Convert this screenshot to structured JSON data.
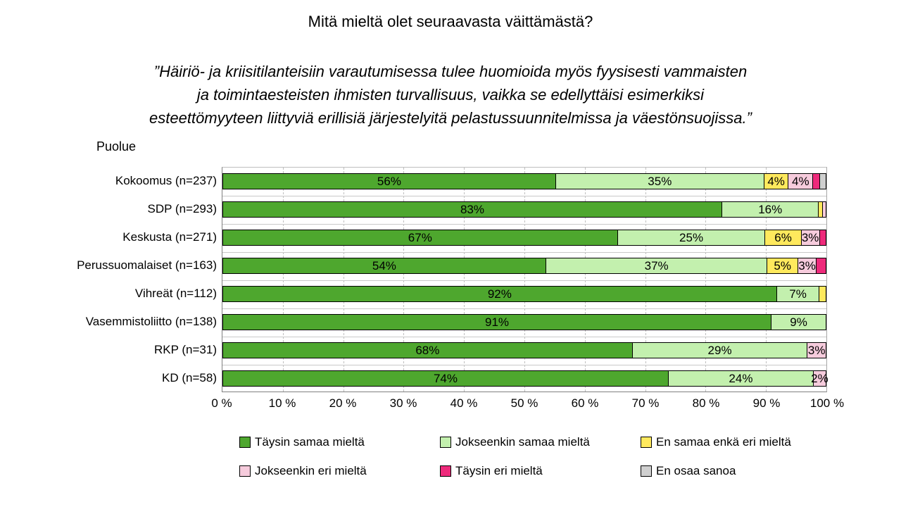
{
  "chart_data": {
    "type": "bar",
    "stacked": true,
    "orientation": "horizontal",
    "title": "Mitä mieltä olet seuraavasta väittämästä?",
    "subtitle_lines": [
      "”Häiriö- ja kriisitilanteisiin varautumisessa tulee huomioida myös fyysisesti vammaisten",
      "ja toimintaesteisten ihmisten turvallisuus, vaikka se edellyttäisi esimerkiksi",
      "esteettömyyteen liittyviä erillisiä järjestelyitä pelastussuunnitelmissa ja väestönsuojissa.”"
    ],
    "axis_title": "Puolue",
    "categories": [
      "Kokoomus (n=237)",
      "SDP (n=293)",
      "Keskusta (n=271)",
      "Perussuomalaiset (n=163)",
      "Vihreät (n=112)",
      "Vasemmistoliitto (n=138)",
      "RKP (n=31)",
      "KD (n=58)"
    ],
    "series": [
      {
        "name": "Täysin samaa mieltä",
        "color": "#4EA72E",
        "values": [
          56,
          83,
          67,
          54,
          92,
          91,
          68,
          74
        ]
      },
      {
        "name": "Jokseenkin samaa mieltä",
        "color": "#C3F0AE",
        "values": [
          35,
          16,
          25,
          37,
          7,
          9,
          29,
          24
        ]
      },
      {
        "name": "En samaa enkä eri mieltä",
        "color": "#FFE95D",
        "values": [
          4,
          0.5,
          6,
          5,
          1,
          0,
          0,
          0
        ]
      },
      {
        "name": "Jokseenkin eri mieltä",
        "color": "#F6CBDC",
        "values": [
          4,
          0.5,
          3,
          3,
          0,
          0,
          3,
          2
        ]
      },
      {
        "name": "Täysin eri mieltä",
        "color": "#EE2A7B",
        "values": [
          1,
          0,
          1,
          1.5,
          0,
          0,
          0,
          0
        ]
      },
      {
        "name": "En osaa sanoa",
        "color": "#CFCFCF",
        "values": [
          1,
          0,
          0,
          0,
          0,
          0,
          0,
          0
        ]
      }
    ],
    "xlim": [
      0,
      100
    ],
    "xticks": [
      "0 %",
      "10 %",
      "20 %",
      "30 %",
      "40 %",
      "50 %",
      "60 %",
      "70 %",
      "80 %",
      "90 %",
      "100 %"
    ],
    "label_suffix": "%",
    "min_value_for_label": 2,
    "grid": true,
    "legend_position": "bottom",
    "legend_rows": 2
  }
}
